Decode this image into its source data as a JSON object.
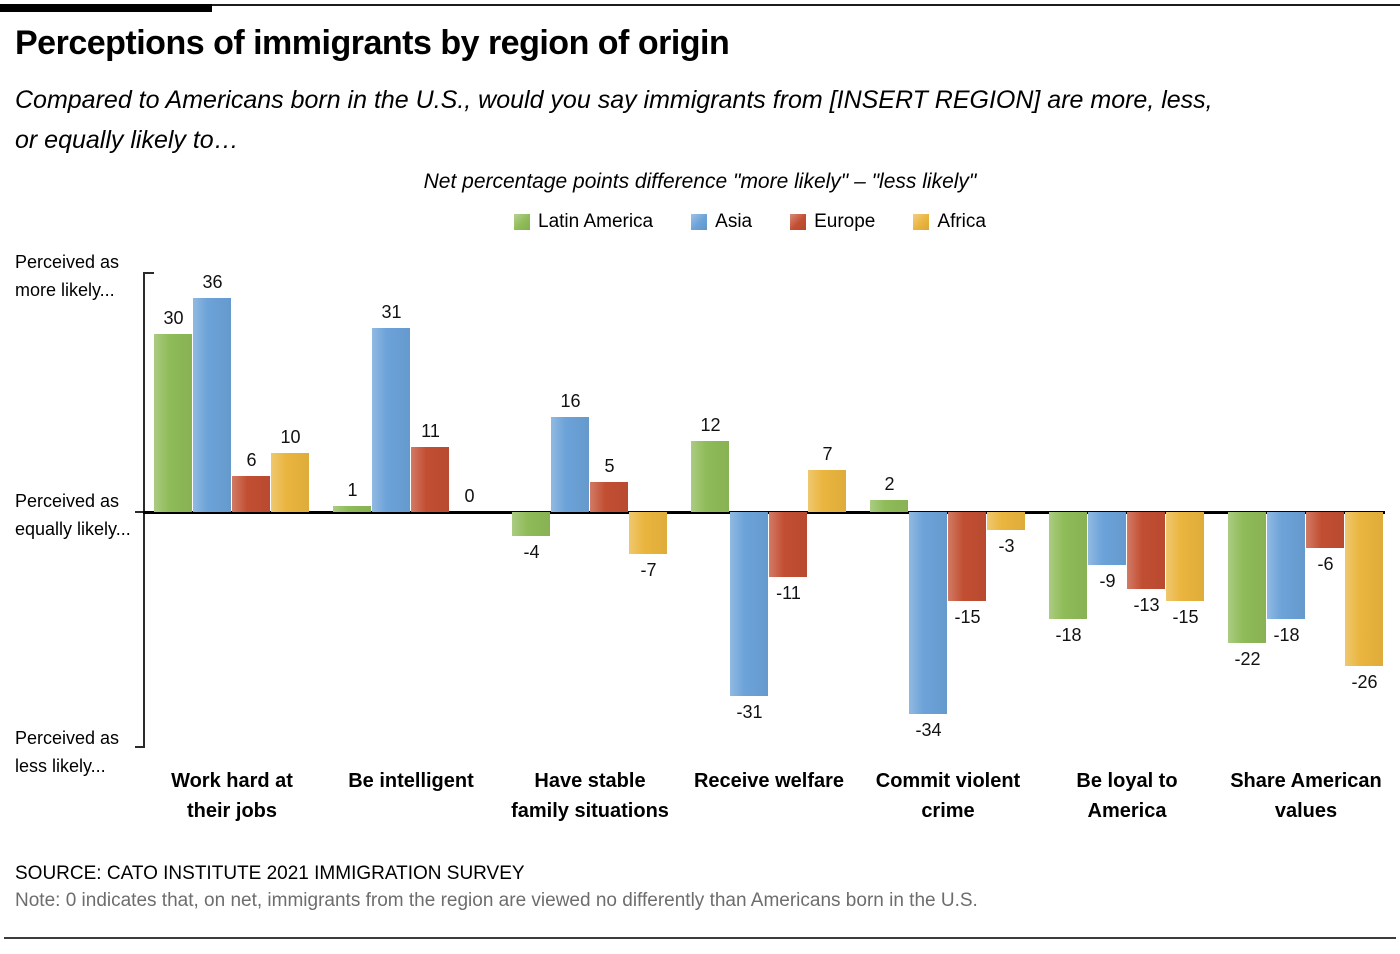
{
  "page": {
    "title": "Perceptions of immigrants by region of origin",
    "subtitle_lines": [
      "Compared to Americans born in the U.S., would you say immigrants from [INSERT REGION] are more, less,",
      "or equally likely to…"
    ],
    "source": "SOURCE: CATO INSTITUTE 2021 IMMIGRATION SURVEY",
    "note": "Note: 0 indicates that, on net, immigrants from the region are viewed no differently than Americans born in the U.S."
  },
  "chart_data": {
    "type": "bar",
    "title": "Net percentage points difference \"more likely\" – \"less likely\"",
    "categories": [
      "Work hard at their jobs",
      "Be intelligent",
      "Have stable family situations",
      "Receive welfare",
      "Commit violent crime",
      "Be loyal to America",
      "Share American values"
    ],
    "category_lines": [
      [
        "Work hard at",
        "their jobs"
      ],
      [
        "Be intelligent"
      ],
      [
        "Have stable",
        "family situations"
      ],
      [
        "Receive welfare"
      ],
      [
        "Commit violent",
        "crime"
      ],
      [
        "Be loyal to",
        "America"
      ],
      [
        "Share American",
        "values"
      ]
    ],
    "series": [
      {
        "name": "Latin America",
        "color": "#8FBB58",
        "values": [
          30,
          1,
          -4,
          12,
          2,
          -18,
          -22
        ]
      },
      {
        "name": "Asia",
        "color": "#6BA2D8",
        "values": [
          36,
          31,
          16,
          -31,
          -34,
          -9,
          -18
        ]
      },
      {
        "name": "Europe",
        "color": "#C24E32",
        "values": [
          6,
          11,
          5,
          -11,
          -15,
          -13,
          -6
        ]
      },
      {
        "name": "Africa",
        "color": "#EAB53E",
        "values": [
          10,
          0,
          -7,
          7,
          -3,
          -15,
          -26
        ]
      }
    ],
    "ylim": [
      -40,
      40
    ],
    "grid": false,
    "legend_position": "top",
    "axis_annotations": [
      {
        "line1": "Perceived as",
        "line2": "more likely..."
      },
      {
        "line1": "Perceived as",
        "line2": "equally likely..."
      },
      {
        "line1": "Perceived as",
        "line2": "less likely..."
      }
    ]
  }
}
